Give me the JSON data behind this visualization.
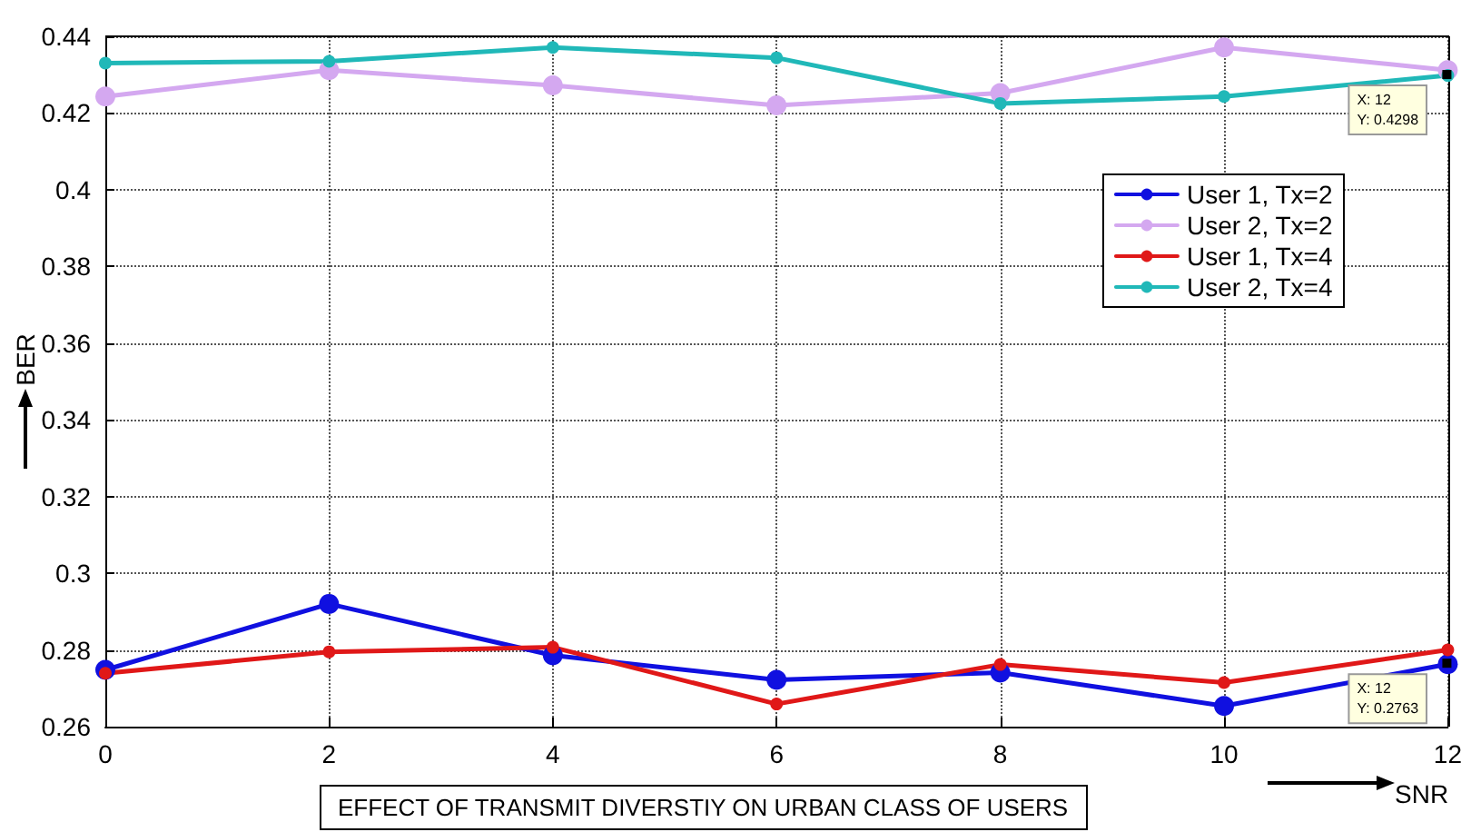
{
  "chart_data": {
    "type": "line",
    "title": "EFFECT OF TRANSMIT DIVERSTIY ON URBAN CLASS OF USERS",
    "xlabel": "SNR",
    "ylabel": "BER",
    "x": [
      0,
      2,
      4,
      6,
      8,
      10,
      12
    ],
    "series": [
      {
        "name": "User 1, Tx=2",
        "color": "#1010e0",
        "values": [
          0.2748,
          0.292,
          0.2786,
          0.2722,
          0.2741,
          0.2654,
          0.2763
        ]
      },
      {
        "name": "User 2, Tx=2",
        "color": "#d4a8f0",
        "values": [
          0.4243,
          0.4312,
          0.4272,
          0.422,
          0.4252,
          0.4371,
          0.4312
        ]
      },
      {
        "name": "User 1, Tx=4",
        "color": "#e01818",
        "values": [
          0.2739,
          0.2795,
          0.2807,
          0.2659,
          0.2762,
          0.2715,
          0.28
        ]
      },
      {
        "name": "User 2, Tx=4",
        "color": "#20b8b8",
        "values": [
          0.433,
          0.4335,
          0.4371,
          0.4344,
          0.4225,
          0.4243,
          0.4298
        ]
      }
    ],
    "xlim": [
      0,
      12
    ],
    "xticks": [
      0,
      2,
      4,
      6,
      8,
      10,
      12
    ],
    "ylim": [
      0.26,
      0.44
    ],
    "yticks": [
      0.26,
      0.28,
      0.3,
      0.32,
      0.34,
      0.36,
      0.38,
      0.4,
      0.42,
      0.44
    ],
    "annotations": [
      {
        "text": "X: 12\nY: 0.4298",
        "x": 12,
        "y": 0.4298
      },
      {
        "text": "X: 12\nY: 0.2763",
        "x": 12,
        "y": 0.2763
      }
    ],
    "grid": true,
    "legend": "top right",
    "marker": "circle",
    "line_style": "solid"
  }
}
